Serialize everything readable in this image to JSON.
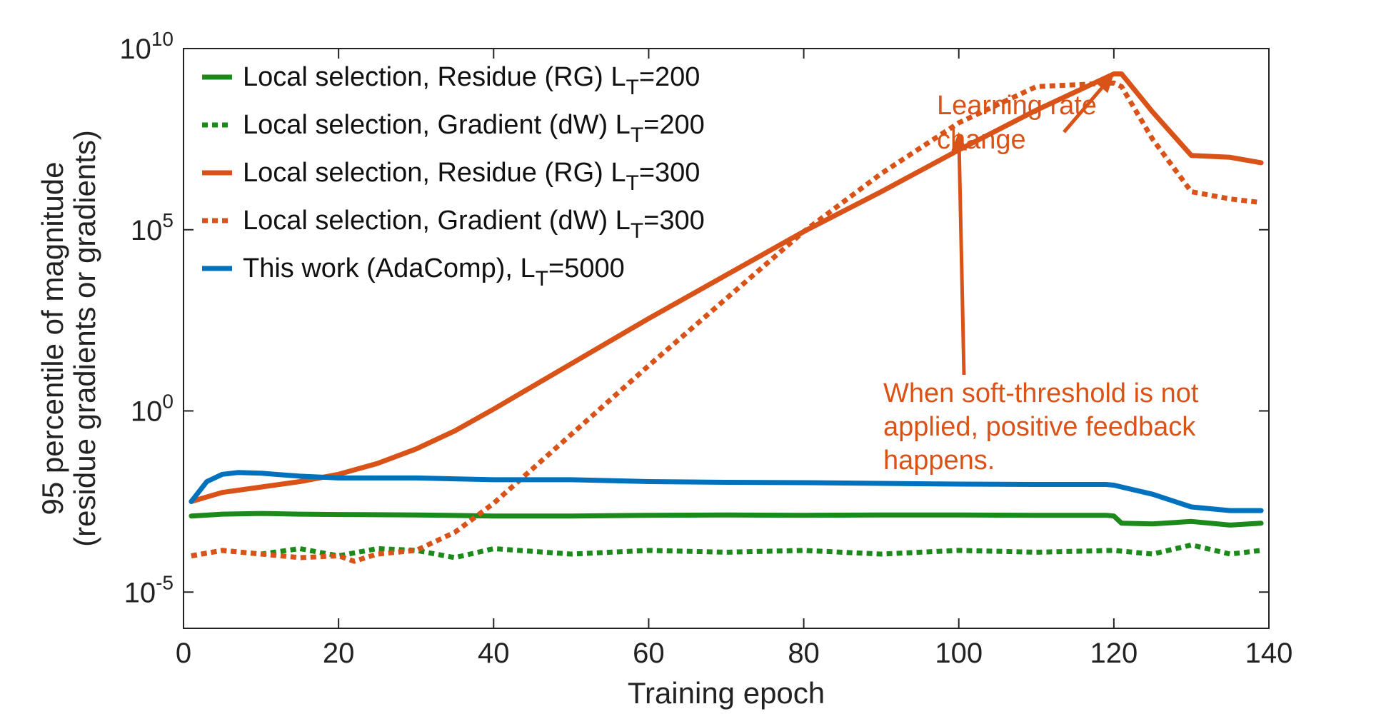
{
  "chart_data": {
    "type": "line",
    "title": "",
    "xlabel": "Training epoch",
    "ylabel_line1": "95 percentile of magnitude",
    "ylabel_line2": "(residue gradients or gradients)",
    "xlim": [
      0,
      140
    ],
    "ylim_log10": [
      -6,
      10
    ],
    "x_ticks": [
      {
        "value": 0,
        "label": "0"
      },
      {
        "value": 20,
        "label": "20"
      },
      {
        "value": 40,
        "label": "40"
      },
      {
        "value": 60,
        "label": "60"
      },
      {
        "value": 80,
        "label": "80"
      },
      {
        "value": 100,
        "label": "100"
      },
      {
        "value": 120,
        "label": "120"
      },
      {
        "value": 140,
        "label": "140"
      }
    ],
    "y_ticks": [
      {
        "value_log10": -5,
        "base": "10",
        "exp": "-5"
      },
      {
        "value_log10": 0,
        "base": "10",
        "exp": "0"
      },
      {
        "value_log10": 5,
        "base": "10",
        "exp": "5"
      },
      {
        "value_log10": 10,
        "base": "10",
        "exp": "10"
      }
    ],
    "grid": false,
    "legend_position": "top-left",
    "series": [
      {
        "id": "local-rg-200",
        "label": "Local selection, Residue (RG) L",
        "sub": "T",
        "suffix": "=200",
        "color": "#1b8a1b",
        "style": "solid",
        "x": [
          1,
          5,
          10,
          15,
          20,
          30,
          40,
          50,
          60,
          70,
          80,
          90,
          100,
          110,
          119,
          120,
          121,
          125,
          130,
          135,
          139
        ],
        "log10_y": [
          -2.9,
          -2.85,
          -2.83,
          -2.85,
          -2.86,
          -2.87,
          -2.9,
          -2.9,
          -2.88,
          -2.87,
          -2.88,
          -2.87,
          -2.87,
          -2.88,
          -2.88,
          -2.9,
          -3.1,
          -3.12,
          -3.05,
          -3.15,
          -3.1
        ]
      },
      {
        "id": "local-dw-200",
        "label": "Local selection, Gradient (dW) L",
        "sub": "T",
        "suffix": "=200",
        "color": "#1b8a1b",
        "style": "dotted",
        "x": [
          1,
          5,
          10,
          15,
          20,
          25,
          30,
          35,
          40,
          50,
          60,
          70,
          80,
          90,
          100,
          110,
          120,
          125,
          130,
          135,
          139
        ],
        "log10_y": [
          -4.0,
          -3.85,
          -3.95,
          -3.8,
          -4.0,
          -3.8,
          -3.85,
          -4.05,
          -3.8,
          -3.95,
          -3.85,
          -3.9,
          -3.85,
          -3.95,
          -3.85,
          -3.9,
          -3.85,
          -3.95,
          -3.7,
          -3.95,
          -3.85
        ]
      },
      {
        "id": "local-rg-300",
        "label": "Local selection, Residue (RG) L",
        "sub": "T",
        "suffix": "=300",
        "color": "#d95319",
        "style": "solid",
        "x": [
          1,
          5,
          10,
          15,
          20,
          25,
          30,
          35,
          40,
          50,
          60,
          70,
          80,
          90,
          100,
          110,
          120,
          121,
          125,
          130,
          135,
          139
        ],
        "log10_y": [
          -2.5,
          -2.25,
          -2.1,
          -1.95,
          -1.75,
          -1.45,
          -1.05,
          -0.55,
          0.05,
          1.3,
          2.55,
          3.75,
          4.95,
          6.05,
          7.2,
          8.3,
          9.3,
          9.3,
          8.25,
          7.05,
          7.0,
          6.85
        ]
      },
      {
        "id": "local-dw-300",
        "label": "Local selection, Gradient (dW) L",
        "sub": "T",
        "suffix": "=300",
        "color": "#d95319",
        "style": "dotted",
        "x": [
          1,
          5,
          10,
          15,
          20,
          22,
          25,
          30,
          35,
          40,
          50,
          60,
          70,
          80,
          90,
          100,
          110,
          120,
          121,
          125,
          130,
          135,
          139
        ],
        "log10_y": [
          -4.0,
          -3.85,
          -3.95,
          -4.05,
          -4.0,
          -4.15,
          -3.95,
          -3.85,
          -3.35,
          -2.55,
          -0.65,
          1.25,
          3.1,
          4.95,
          6.55,
          7.95,
          8.95,
          9.05,
          8.95,
          7.5,
          6.05,
          5.85,
          5.75
        ]
      },
      {
        "id": "adacomp-5000",
        "label": "This work (AdaComp), L",
        "sub": "T",
        "suffix": "=5000",
        "color": "#0072bd",
        "style": "solid",
        "x": [
          1,
          3,
          5,
          7,
          10,
          15,
          20,
          30,
          40,
          50,
          60,
          70,
          80,
          90,
          100,
          110,
          119,
          120,
          122,
          125,
          130,
          135,
          139
        ],
        "log10_y": [
          -2.5,
          -1.95,
          -1.75,
          -1.7,
          -1.72,
          -1.8,
          -1.85,
          -1.85,
          -1.9,
          -1.9,
          -1.95,
          -1.97,
          -1.98,
          -2.0,
          -2.02,
          -2.03,
          -2.03,
          -2.05,
          -2.15,
          -2.3,
          -2.65,
          -2.75,
          -2.75
        ]
      }
    ],
    "annotations": [
      {
        "id": "lr-change",
        "lines": [
          "Learning rate",
          "change"
        ],
        "color": "#d95319",
        "arrow_to": {
          "x": 120,
          "log10_y": 9.3
        }
      },
      {
        "id": "soft-threshold",
        "lines": [
          "When soft-threshold is not",
          "applied, positive feedback",
          "happens."
        ],
        "color": "#d95319",
        "arrow_to": {
          "x": 100,
          "log10_y": 7.7
        }
      }
    ]
  }
}
